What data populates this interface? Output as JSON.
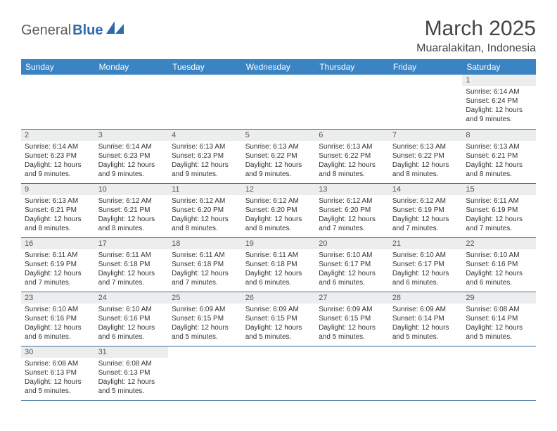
{
  "brand": {
    "general": "General",
    "blue": "Blue"
  },
  "title": "March 2025",
  "location": "Muaralakitan, Indonesia",
  "colors": {
    "header_bg": "#3b84c4",
    "row_border": "#3b6fa3",
    "daynum_bg": "#eceded"
  },
  "weekdays": [
    "Sunday",
    "Monday",
    "Tuesday",
    "Wednesday",
    "Thursday",
    "Friday",
    "Saturday"
  ],
  "weeks": [
    [
      null,
      null,
      null,
      null,
      null,
      null,
      {
        "n": "1",
        "sr": "6:14 AM",
        "ss": "6:24 PM",
        "dl": "12 hours and 9 minutes."
      }
    ],
    [
      {
        "n": "2",
        "sr": "6:14 AM",
        "ss": "6:23 PM",
        "dl": "12 hours and 9 minutes."
      },
      {
        "n": "3",
        "sr": "6:14 AM",
        "ss": "6:23 PM",
        "dl": "12 hours and 9 minutes."
      },
      {
        "n": "4",
        "sr": "6:13 AM",
        "ss": "6:23 PM",
        "dl": "12 hours and 9 minutes."
      },
      {
        "n": "5",
        "sr": "6:13 AM",
        "ss": "6:22 PM",
        "dl": "12 hours and 9 minutes."
      },
      {
        "n": "6",
        "sr": "6:13 AM",
        "ss": "6:22 PM",
        "dl": "12 hours and 8 minutes."
      },
      {
        "n": "7",
        "sr": "6:13 AM",
        "ss": "6:22 PM",
        "dl": "12 hours and 8 minutes."
      },
      {
        "n": "8",
        "sr": "6:13 AM",
        "ss": "6:21 PM",
        "dl": "12 hours and 8 minutes."
      }
    ],
    [
      {
        "n": "9",
        "sr": "6:13 AM",
        "ss": "6:21 PM",
        "dl": "12 hours and 8 minutes."
      },
      {
        "n": "10",
        "sr": "6:12 AM",
        "ss": "6:21 PM",
        "dl": "12 hours and 8 minutes."
      },
      {
        "n": "11",
        "sr": "6:12 AM",
        "ss": "6:20 PM",
        "dl": "12 hours and 8 minutes."
      },
      {
        "n": "12",
        "sr": "6:12 AM",
        "ss": "6:20 PM",
        "dl": "12 hours and 8 minutes."
      },
      {
        "n": "13",
        "sr": "6:12 AM",
        "ss": "6:20 PM",
        "dl": "12 hours and 7 minutes."
      },
      {
        "n": "14",
        "sr": "6:12 AM",
        "ss": "6:19 PM",
        "dl": "12 hours and 7 minutes."
      },
      {
        "n": "15",
        "sr": "6:11 AM",
        "ss": "6:19 PM",
        "dl": "12 hours and 7 minutes."
      }
    ],
    [
      {
        "n": "16",
        "sr": "6:11 AM",
        "ss": "6:19 PM",
        "dl": "12 hours and 7 minutes."
      },
      {
        "n": "17",
        "sr": "6:11 AM",
        "ss": "6:18 PM",
        "dl": "12 hours and 7 minutes."
      },
      {
        "n": "18",
        "sr": "6:11 AM",
        "ss": "6:18 PM",
        "dl": "12 hours and 7 minutes."
      },
      {
        "n": "19",
        "sr": "6:11 AM",
        "ss": "6:18 PM",
        "dl": "12 hours and 6 minutes."
      },
      {
        "n": "20",
        "sr": "6:10 AM",
        "ss": "6:17 PM",
        "dl": "12 hours and 6 minutes."
      },
      {
        "n": "21",
        "sr": "6:10 AM",
        "ss": "6:17 PM",
        "dl": "12 hours and 6 minutes."
      },
      {
        "n": "22",
        "sr": "6:10 AM",
        "ss": "6:16 PM",
        "dl": "12 hours and 6 minutes."
      }
    ],
    [
      {
        "n": "23",
        "sr": "6:10 AM",
        "ss": "6:16 PM",
        "dl": "12 hours and 6 minutes."
      },
      {
        "n": "24",
        "sr": "6:10 AM",
        "ss": "6:16 PM",
        "dl": "12 hours and 6 minutes."
      },
      {
        "n": "25",
        "sr": "6:09 AM",
        "ss": "6:15 PM",
        "dl": "12 hours and 5 minutes."
      },
      {
        "n": "26",
        "sr": "6:09 AM",
        "ss": "6:15 PM",
        "dl": "12 hours and 5 minutes."
      },
      {
        "n": "27",
        "sr": "6:09 AM",
        "ss": "6:15 PM",
        "dl": "12 hours and 5 minutes."
      },
      {
        "n": "28",
        "sr": "6:09 AM",
        "ss": "6:14 PM",
        "dl": "12 hours and 5 minutes."
      },
      {
        "n": "29",
        "sr": "6:08 AM",
        "ss": "6:14 PM",
        "dl": "12 hours and 5 minutes."
      }
    ],
    [
      {
        "n": "30",
        "sr": "6:08 AM",
        "ss": "6:13 PM",
        "dl": "12 hours and 5 minutes."
      },
      {
        "n": "31",
        "sr": "6:08 AM",
        "ss": "6:13 PM",
        "dl": "12 hours and 5 minutes."
      },
      null,
      null,
      null,
      null,
      null
    ]
  ],
  "labels": {
    "sunrise": "Sunrise:",
    "sunset": "Sunset:",
    "daylight": "Daylight:"
  }
}
